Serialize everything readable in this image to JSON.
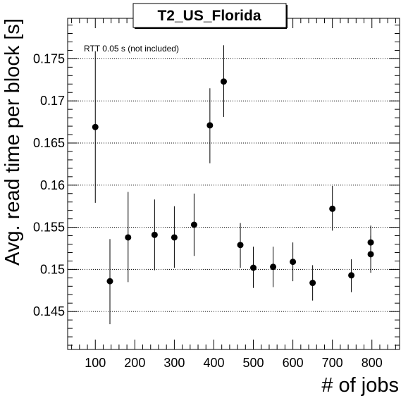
{
  "chart_data": {
    "type": "scatter",
    "title": "T2_US_Florida",
    "xlabel": "# of jobs",
    "ylabel": "Avg. read time per block [s]",
    "annotation": "RTT 0.05 s (not included)",
    "xlim": [
      30,
      870
    ],
    "ylim": [
      0.1405,
      0.1798
    ],
    "x_ticks": [
      100,
      200,
      300,
      400,
      500,
      600,
      700,
      800
    ],
    "y_ticks": [
      0.145,
      0.15,
      0.155,
      0.16,
      0.165,
      0.17,
      0.175
    ],
    "y_tick_labels": [
      "0.145",
      "0.15",
      "0.155",
      "0.16",
      "0.165",
      "0.17",
      "0.175"
    ],
    "grid": "horizontal dotted",
    "points": [
      {
        "x": 100,
        "y": 0.1669,
        "err_low": 0.1579,
        "err_high": 0.1759
      },
      {
        "x": 137,
        "y": 0.1486,
        "err_low": 0.1435,
        "err_high": 0.1536
      },
      {
        "x": 183,
        "y": 0.1538,
        "err_low": 0.1485,
        "err_high": 0.1592
      },
      {
        "x": 250,
        "y": 0.1541,
        "err_low": 0.1499,
        "err_high": 0.1583
      },
      {
        "x": 300,
        "y": 0.1538,
        "err_low": 0.1502,
        "err_high": 0.1575
      },
      {
        "x": 350,
        "y": 0.1553,
        "err_low": 0.1516,
        "err_high": 0.159
      },
      {
        "x": 390,
        "y": 0.1671,
        "err_low": 0.1626,
        "err_high": 0.1715
      },
      {
        "x": 425,
        "y": 0.1723,
        "err_low": 0.1681,
        "err_high": 0.1766
      },
      {
        "x": 467,
        "y": 0.1529,
        "err_low": 0.1502,
        "err_high": 0.1555
      },
      {
        "x": 500,
        "y": 0.1502,
        "err_low": 0.1478,
        "err_high": 0.1527
      },
      {
        "x": 550,
        "y": 0.1503,
        "err_low": 0.1479,
        "err_high": 0.1527
      },
      {
        "x": 600,
        "y": 0.1509,
        "err_low": 0.1486,
        "err_high": 0.1532
      },
      {
        "x": 650,
        "y": 0.1484,
        "err_low": 0.1463,
        "err_high": 0.1505
      },
      {
        "x": 700,
        "y": 0.1572,
        "err_low": 0.1546,
        "err_high": 0.1599
      },
      {
        "x": 748,
        "y": 0.1493,
        "err_low": 0.1473,
        "err_high": 0.1512
      },
      {
        "x": 797,
        "y": 0.1532,
        "err_low": 0.1513,
        "err_high": 0.1552
      },
      {
        "x": 797,
        "y": 0.1518,
        "err_low": 0.1496,
        "err_high": 0.154
      }
    ]
  }
}
